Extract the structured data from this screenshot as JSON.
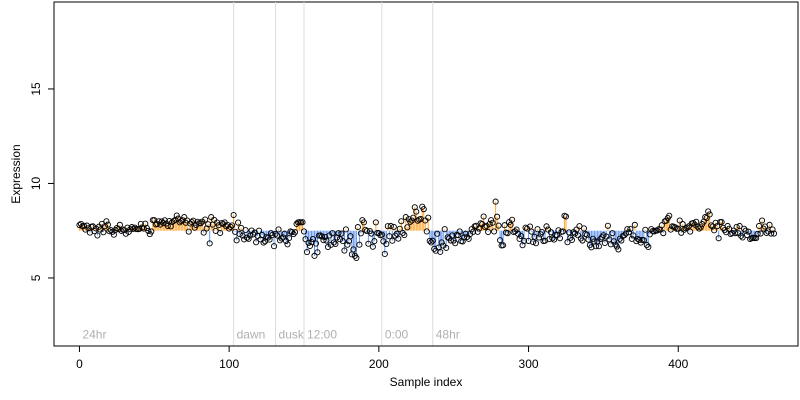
{
  "chart_data": {
    "type": "scatter",
    "title": "",
    "xlabel": "Sample index",
    "ylabel": "Expression",
    "xlim": [
      -17,
      480
    ],
    "ylim": [
      1.4,
      19.6
    ],
    "xticks": [
      0,
      100,
      200,
      300,
      400
    ],
    "yticks": [
      5,
      10,
      15
    ],
    "xtick_labels": [
      "0",
      "100",
      "200",
      "300",
      "400"
    ],
    "ytick_labels": [
      "5",
      "10",
      "15"
    ],
    "baseline": 7.5,
    "grid": false,
    "legend": "none",
    "colors": {
      "above_baseline": "#ffa630",
      "below_baseline": "#6495ed",
      "point_edge": "#000000",
      "divider": "#dcdcdc",
      "period_label": "#b0b0b0"
    },
    "periods": [
      {
        "label": "24hr",
        "start": 2
      },
      {
        "label": "dawn",
        "start": 105
      },
      {
        "label": "dusk",
        "start": 133
      },
      {
        "label": "12:00",
        "start": 152
      },
      {
        "label": "0:00",
        "start": 204
      },
      {
        "label": "48hr",
        "start": 238
      }
    ],
    "period_label_y": 2.0,
    "series": [
      {
        "x_start": 0,
        "values": [
          7.8,
          7.86,
          7.73,
          7.76,
          7.56,
          7.77,
          7.63,
          7.4,
          7.71,
          7.73,
          7.48,
          7.62,
          7.25,
          7.71,
          7.56,
          7.86,
          7.42,
          7.74,
          8.0,
          7.82,
          7.47,
          7.53,
          7.44,
          7.29,
          7.54,
          7.64,
          7.58,
          7.81,
          7.49,
          7.56,
          7.53,
          7.34,
          7.66,
          7.44,
          7.58,
          7.69,
          7.59,
          7.66,
          7.59,
          7.58,
          7.59,
          7.86,
          7.67,
          7.61,
          7.87,
          7.64,
          7.49,
          7.32,
          7.46,
          8.06,
          8.06,
          7.83,
          7.86,
          8.0,
          7.82,
          7.99,
          7.9,
          8.05,
          7.88,
          7.75,
          8.01,
          7.73,
          7.96,
          8.02,
          8.07,
          8.3,
          8.14,
          7.94,
          8.01,
          8.05,
          8.22,
          7.92,
          8.04,
          7.45,
          7.88,
          7.96,
          8.03,
          7.66,
          7.8,
          7.97,
          7.9,
          7.89,
          7.98,
          7.4,
          8.09,
          7.62,
          7.84,
          6.83,
          8.22,
          7.82,
          8.07,
          7.49,
          7.93,
          7.79,
          7.38,
          7.9,
          7.86,
          7.94,
          7.74,
          7.8,
          7.61,
          7.7,
          7.78,
          8.33,
          7.44,
          6.99,
          7.93,
          7.32,
          7.65,
          7.24,
          7.04,
          7.53,
          7.13,
          7.07,
          7.24,
          7.51,
          7.31,
          7.4,
          6.89,
          7.22,
          7.5,
          7.04,
          7.27,
          6.87,
          6.94,
          7.16,
          7.13,
          7.03,
          7.37,
          7.28,
          6.68,
          7.33,
          7.25,
          7.57,
          6.99,
          7.09,
          7.15,
          7.34,
          6.96,
          6.78,
          7.11,
          7.46,
          7.43,
          7.32,
          7.42,
          7.86,
          7.94,
          7.95,
          7.94,
          7.95,
          7.46,
          7.05,
          6.37,
          6.86,
          6.69,
          6.9,
          7.06,
          6.17,
          6.82,
          6.36,
          7.24,
          7.25,
          7.19,
          7.0,
          7.17,
          6.98,
          6.64,
          7.25,
          6.75,
          7.37,
          6.88,
          6.8,
          7.14,
          7.37,
          7.05,
          7.35,
          6.95,
          6.45,
          7.57,
          6.76,
          6.95,
          7.21,
          6.25,
          6.51,
          6.17,
          6.06,
          7.69,
          6.76,
          7.36,
          8.06,
          7.94,
          7.55,
          7.48,
          6.81,
          7.48,
          7.35,
          6.65,
          6.95,
          7.94,
          7.38,
          7.37,
          7.26,
          7.29,
          6.94,
          6.27,
          6.8,
          7.74,
          7.21,
          7.75,
          6.97,
          7.7,
          7.24,
          7.34,
          7.08,
          7.6,
          8.0,
          7.38,
          7.27,
          8.22,
          7.68,
          8.11,
          7.97,
          8.04,
          8.19,
          8.74,
          8.51,
          8.03,
          8.09,
          8.12,
          8.77,
          8.64,
          8.04,
          7.46,
          8.19,
          6.96,
          6.88,
          6.97,
          6.54,
          6.44,
          7.34,
          6.61,
          6.38,
          6.88,
          6.71,
          7.58,
          6.59,
          7.15,
          7.1,
          6.98,
          7.25,
          6.98,
          6.84,
          7.27,
          7.26,
          7.46,
          6.95,
          6.93,
          7.15,
          7.34,
          7.17,
          7.07,
          7.33,
          7.58,
          7.44,
          7.73,
          7.76,
          7.44,
          7.61,
          7.89,
          7.85,
          8.25,
          7.69,
          7.75,
          7.43,
          7.86,
          8.06,
          7.92,
          7.46,
          9.04,
          8.24,
          7.77,
          7.0,
          6.72,
          6.73,
          7.79,
          7.4,
          7.37,
          7.95,
          7.81,
          8.08,
          7.43,
          7.47,
          7.56,
          7.34,
          7.07,
          7.22,
          6.73,
          6.96,
          7.66,
          7.61,
          6.96,
          7.72,
          7.45,
          6.9,
          7.18,
          6.84,
          7.58,
          7.14,
          7.31,
          7.43,
          6.95,
          6.97,
          7.73,
          7.56,
          7.06,
          7.42,
          7.1,
          7.03,
          7.27,
          7.27,
          7.52,
          7.1,
          7.44,
          7.46,
          8.29,
          8.25,
          6.89,
          7.41,
          7.12,
          7.01,
          7.42,
          7.35,
          7.56,
          7.26,
          7.74,
          7.09,
          6.98,
          7.62,
          7.33,
          7.29,
          7.03,
          6.74,
          6.62,
          7.07,
          6.93,
          6.68,
          6.93,
          6.68,
          7.06,
          7.15,
          7.26,
          6.85,
          7.19,
          7.76,
          7.04,
          6.78,
          7.37,
          6.94,
          6.77,
          6.66,
          6.51,
          7.07,
          6.98,
          7.22,
          7.26,
          7.35,
          7.58,
          7.42,
          7.59,
          7.07,
          7.25,
          7.81,
          6.95,
          7.06,
          7.01,
          6.87,
          7.01,
          7.0,
          7.55,
          6.74,
          6.64,
          7.31,
          7.58,
          7.48,
          7.46,
          7.51,
          7.51,
          7.58,
          7.55,
          7.79,
          7.37,
          8.0,
          8.03,
          8.17,
          8.29,
          7.56,
          7.73,
          7.71,
          7.68,
          7.6,
          7.61,
          8.04,
          7.39,
          7.85,
          7.55,
          7.63,
          7.66,
          7.73,
          7.45,
          7.88,
          7.91,
          7.82,
          7.97,
          7.71,
          7.61,
          7.68,
          7.85,
          7.98,
          8.22,
          8.17,
          8.52,
          8.36,
          7.78,
          7.72,
          7.52,
          7.92,
          7.74,
          7.1,
          7.96,
          7.96,
          7.65,
          7.53,
          7.42,
          7.75,
          7.6,
          7.33,
          7.38,
          7.5,
          7.37,
          7.7,
          7.37,
          7.75,
          7.23,
          7.14,
          7.6,
          7.5,
          7.27,
          7.45,
          7.06,
          7.1,
          7.13,
          7.11,
          7.11,
          7.33,
          7.75,
          7.35,
          8.04,
          7.61,
          7.72,
          7.38,
          7.46,
          7.81,
          7.35,
          7.56,
          7.35
        ]
      }
    ]
  }
}
